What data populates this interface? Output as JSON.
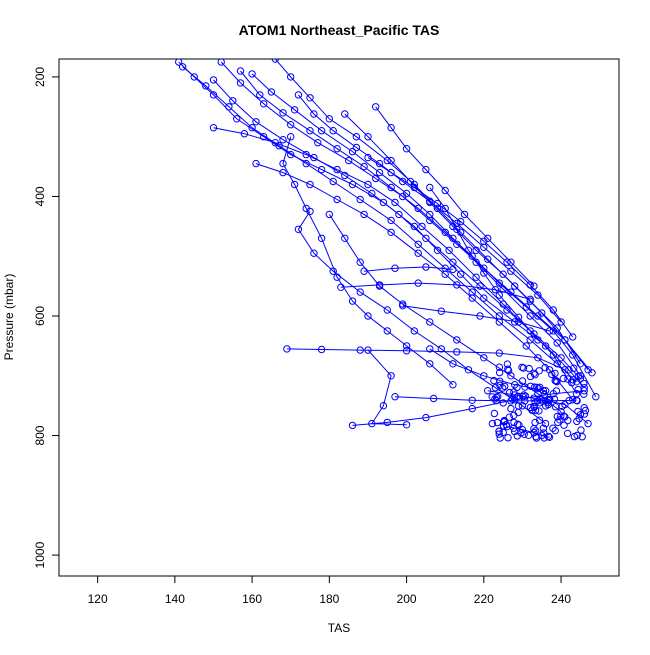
{
  "chart_data": {
    "type": "scatter",
    "title": "ATOM1 Northeast_Pacific TAS",
    "xlabel": "TAS",
    "ylabel": "Pressure (mbar)",
    "xlim": [
      110,
      255
    ],
    "ylim": [
      170,
      1035
    ],
    "y_reversed": true,
    "x_ticks": [
      120,
      140,
      160,
      180,
      200,
      220,
      240
    ],
    "y_ticks": [
      200,
      400,
      600,
      800,
      1000
    ],
    "grid": false,
    "legend": "none",
    "color": "#0000ff",
    "marker": "open-circle",
    "series": [
      {
        "points": [
          [
            141,
            175
          ],
          [
            145,
            200
          ],
          [
            150,
            230
          ],
          [
            156,
            270
          ],
          [
            163,
            300
          ],
          [
            170,
            330
          ],
          [
            178,
            355
          ],
          [
            186,
            380
          ],
          [
            194,
            410
          ],
          [
            202,
            450
          ],
          [
            208,
            490
          ],
          [
            214,
            530
          ],
          [
            220,
            570
          ],
          [
            228,
            610
          ],
          [
            236,
            650
          ],
          [
            242,
            690
          ],
          [
            246,
            720
          ]
        ]
      },
      {
        "points": [
          [
            142,
            183
          ],
          [
            148,
            215
          ],
          [
            154,
            250
          ],
          [
            160,
            285
          ],
          [
            167,
            315
          ],
          [
            174,
            345
          ],
          [
            181,
            375
          ],
          [
            188,
            405
          ],
          [
            196,
            440
          ],
          [
            203,
            480
          ],
          [
            210,
            520
          ],
          [
            217,
            560
          ],
          [
            224,
            600
          ],
          [
            232,
            640
          ],
          [
            239,
            680
          ],
          [
            244,
            710
          ]
        ]
      },
      {
        "points": [
          [
            150,
            205
          ],
          [
            155,
            240
          ],
          [
            161,
            275
          ],
          [
            168,
            305
          ],
          [
            176,
            335
          ],
          [
            184,
            365
          ],
          [
            191,
            395
          ],
          [
            198,
            430
          ],
          [
            205,
            470
          ],
          [
            212,
            510
          ],
          [
            219,
            550
          ],
          [
            226,
            590
          ],
          [
            233,
            630
          ],
          [
            240,
            670
          ],
          [
            245,
            705
          ]
        ]
      },
      {
        "points": [
          [
            152,
            175
          ],
          [
            157,
            210
          ],
          [
            163,
            245
          ],
          [
            170,
            280
          ],
          [
            177,
            310
          ],
          [
            185,
            340
          ],
          [
            192,
            370
          ],
          [
            199,
            400
          ],
          [
            206,
            440
          ],
          [
            213,
            480
          ],
          [
            220,
            520
          ],
          [
            227,
            560
          ],
          [
            234,
            600
          ],
          [
            241,
            640
          ],
          [
            247,
            690
          ]
        ]
      },
      {
        "points": [
          [
            157,
            190
          ],
          [
            162,
            230
          ],
          [
            168,
            260
          ],
          [
            175,
            290
          ],
          [
            182,
            320
          ],
          [
            189,
            350
          ],
          [
            196,
            385
          ],
          [
            203,
            420
          ],
          [
            210,
            460
          ],
          [
            217,
            500
          ],
          [
            224,
            545
          ],
          [
            231,
            585
          ],
          [
            238,
            625
          ],
          [
            243,
            665
          ],
          [
            249,
            735
          ]
        ]
      },
      {
        "points": [
          [
            160,
            195
          ],
          [
            165,
            225
          ],
          [
            171,
            255
          ],
          [
            178,
            290
          ],
          [
            186,
            325
          ],
          [
            193,
            360
          ],
          [
            200,
            395
          ],
          [
            206,
            430
          ],
          [
            212,
            470
          ],
          [
            218,
            510
          ],
          [
            225,
            555
          ],
          [
            232,
            600
          ],
          [
            239,
            645
          ],
          [
            245,
            700
          ]
        ]
      },
      {
        "points": [
          [
            166,
            170
          ],
          [
            170,
            200
          ],
          [
            175,
            235
          ],
          [
            180,
            270
          ],
          [
            187,
            300
          ],
          [
            195,
            340
          ],
          [
            202,
            380
          ],
          [
            208,
            420
          ],
          [
            214,
            460
          ],
          [
            221,
            505
          ],
          [
            228,
            550
          ],
          [
            235,
            595
          ],
          [
            241,
            640
          ],
          [
            248,
            695
          ]
        ]
      },
      {
        "points": [
          [
            150,
            285
          ],
          [
            158,
            295
          ],
          [
            166,
            310
          ],
          [
            174,
            330
          ],
          [
            182,
            355
          ],
          [
            190,
            380
          ],
          [
            197,
            410
          ],
          [
            204,
            450
          ],
          [
            211,
            490
          ],
          [
            218,
            535
          ],
          [
            225,
            580
          ],
          [
            232,
            625
          ],
          [
            238,
            665
          ],
          [
            244,
            730
          ]
        ]
      },
      {
        "points": [
          [
            161,
            345
          ],
          [
            168,
            360
          ],
          [
            175,
            380
          ],
          [
            182,
            405
          ],
          [
            189,
            430
          ],
          [
            196,
            460
          ],
          [
            203,
            495
          ],
          [
            210,
            530
          ],
          [
            217,
            570
          ],
          [
            224,
            610
          ],
          [
            231,
            650
          ],
          [
            237,
            690
          ],
          [
            243,
            740
          ]
        ]
      },
      {
        "points": [
          [
            175,
            425
          ],
          [
            172,
            455
          ],
          [
            176,
            495
          ],
          [
            181,
            525
          ],
          [
            188,
            560
          ],
          [
            195,
            590
          ],
          [
            202,
            625
          ],
          [
            209,
            655
          ],
          [
            216,
            690
          ],
          [
            223,
            720
          ],
          [
            230,
            750
          ],
          [
            236,
            780
          ]
        ]
      },
      {
        "points": [
          [
            170,
            300
          ],
          [
            168,
            345
          ],
          [
            171,
            380
          ],
          [
            174,
            420
          ],
          [
            178,
            470
          ],
          [
            182,
            535
          ],
          [
            186,
            575
          ],
          [
            190,
            600
          ],
          [
            195,
            625
          ],
          [
            200,
            650
          ],
          [
            206,
            680
          ],
          [
            212,
            715
          ]
        ]
      },
      {
        "points": [
          [
            180,
            430
          ],
          [
            184,
            470
          ],
          [
            188,
            510
          ],
          [
            193,
            550
          ],
          [
            199,
            580
          ],
          [
            206,
            610
          ],
          [
            213,
            640
          ],
          [
            220,
            670
          ],
          [
            227,
            700
          ],
          [
            234,
            730
          ],
          [
            240,
            760
          ]
        ]
      },
      {
        "points": [
          [
            169,
            655
          ],
          [
            178,
            656
          ],
          [
            188,
            657
          ],
          [
            200,
            658
          ],
          [
            213,
            660
          ],
          [
            224,
            662
          ],
          [
            234,
            670
          ],
          [
            241,
            690
          ]
        ]
      },
      {
        "points": [
          [
            190,
            657
          ],
          [
            196,
            700
          ],
          [
            194,
            750
          ],
          [
            191,
            780
          ],
          [
            200,
            782
          ]
        ]
      },
      {
        "points": [
          [
            186,
            783
          ],
          [
            195,
            778
          ],
          [
            205,
            770
          ],
          [
            217,
            755
          ],
          [
            228,
            740
          ],
          [
            238,
            730
          ],
          [
            246,
            725
          ]
        ]
      },
      {
        "points": [
          [
            206,
            655
          ],
          [
            212,
            680
          ],
          [
            220,
            700
          ],
          [
            228,
            715
          ],
          [
            236,
            725
          ]
        ]
      },
      {
        "points": [
          [
            184,
            262
          ],
          [
            190,
            300
          ],
          [
            196,
            340
          ],
          [
            201,
            375
          ],
          [
            206,
            410
          ],
          [
            212,
            450
          ],
          [
            218,
            490
          ],
          [
            225,
            530
          ],
          [
            232,
            575
          ],
          [
            239,
            620
          ],
          [
            245,
            680
          ]
        ]
      },
      {
        "points": [
          [
            172,
            230
          ],
          [
            176,
            262
          ],
          [
            181,
            290
          ],
          [
            187,
            318
          ],
          [
            193,
            345
          ],
          [
            199,
            375
          ],
          [
            206,
            408
          ],
          [
            213,
            445
          ],
          [
            220,
            485
          ],
          [
            227,
            525
          ],
          [
            234,
            565
          ],
          [
            240,
            610
          ]
        ]
      },
      {
        "points": [
          [
            190,
            335
          ],
          [
            196,
            360
          ],
          [
            202,
            385
          ],
          [
            208,
            412
          ],
          [
            214,
            442
          ],
          [
            220,
            475
          ],
          [
            226,
            510
          ],
          [
            232,
            548
          ],
          [
            238,
            590
          ],
          [
            243,
            635
          ]
        ]
      },
      {
        "points": [
          [
            206,
            385
          ],
          [
            210,
            420
          ],
          [
            213,
            455
          ],
          [
            216,
            490
          ],
          [
            220,
            528
          ],
          [
            224,
            565
          ],
          [
            229,
            602
          ],
          [
            234,
            640
          ]
        ]
      },
      {
        "points": [
          [
            197,
            735
          ],
          [
            207,
            738
          ],
          [
            217,
            741
          ],
          [
            227,
            742
          ],
          [
            236,
            742
          ],
          [
            244,
            741
          ]
        ]
      },
      {
        "points": [
          [
            199,
            583
          ],
          [
            209,
            592
          ],
          [
            219,
            600
          ],
          [
            229,
            610
          ],
          [
            237,
            625
          ]
        ]
      },
      {
        "points": [
          [
            183,
            552
          ],
          [
            193,
            548
          ],
          [
            203,
            545
          ],
          [
            213,
            548
          ],
          [
            223,
            556
          ],
          [
            232,
            572
          ]
        ]
      },
      {
        "points": [
          [
            189,
            525
          ],
          [
            197,
            520
          ],
          [
            205,
            518
          ],
          [
            212,
            522
          ]
        ]
      },
      {
        "points": [
          [
            192,
            250
          ],
          [
            196,
            285
          ],
          [
            200,
            320
          ],
          [
            205,
            355
          ],
          [
            210,
            390
          ],
          [
            215,
            430
          ],
          [
            221,
            470
          ],
          [
            227,
            510
          ],
          [
            233,
            550
          ]
        ]
      },
      {
        "points": [
          [
            226,
            785
          ],
          [
            230,
            790
          ],
          [
            233,
            795
          ],
          [
            235,
            800
          ],
          [
            237,
            803
          ]
        ]
      },
      {
        "points": [
          [
            221,
            725
          ],
          [
            228,
            732
          ],
          [
            235,
            740
          ],
          [
            241,
            748
          ],
          [
            247,
            780
          ]
        ]
      }
    ],
    "cluster": {
      "x_range": [
        222,
        247
      ],
      "y_range": [
        680,
        805
      ],
      "count": 140,
      "note": "dense overlapping open circles near the surface end of profiles"
    }
  }
}
